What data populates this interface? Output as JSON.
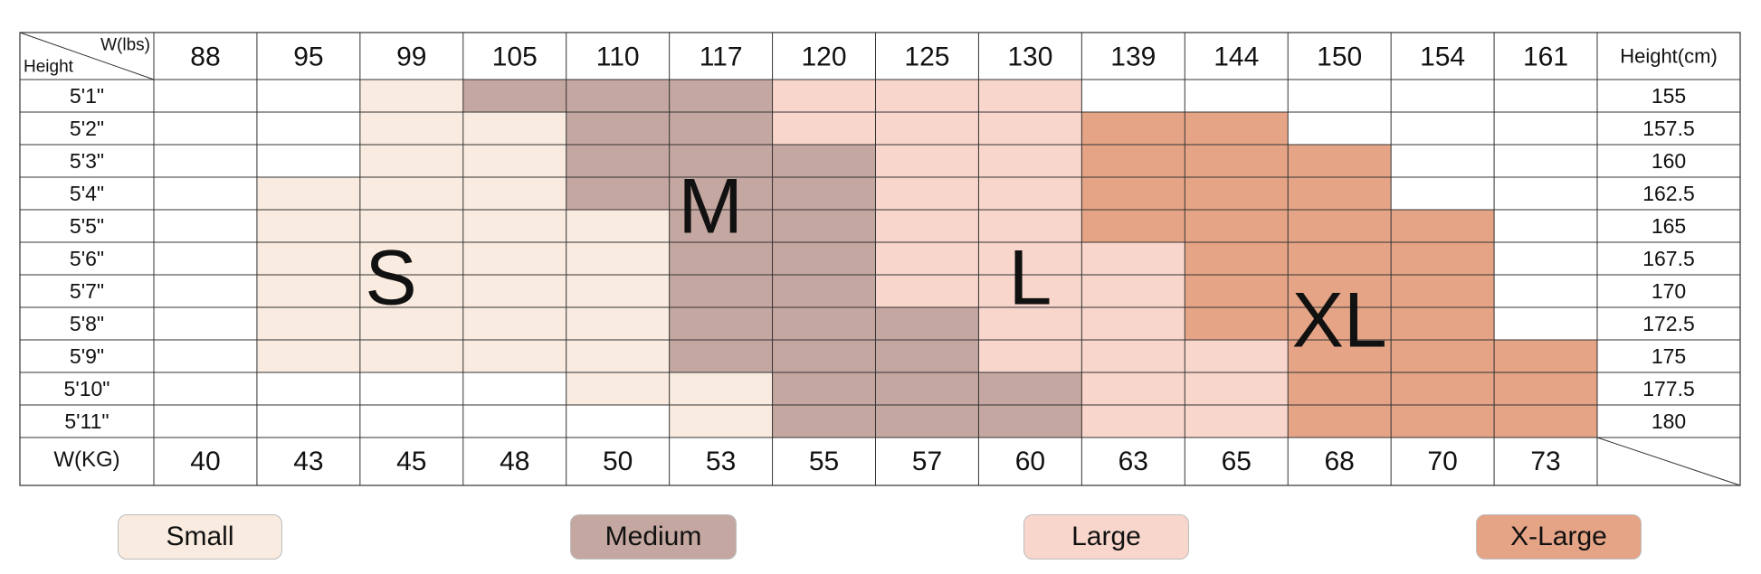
{
  "chart_data": {
    "type": "table",
    "title": "",
    "corner_labels": {
      "top": "W(lbs)",
      "bottom": "Height"
    },
    "right_header": "Height(cm)",
    "kg_label": "W(KG)",
    "weights_lbs": [
      "88",
      "95",
      "99",
      "105",
      "110",
      "117",
      "120",
      "125",
      "130",
      "139",
      "144",
      "150",
      "154",
      "161"
    ],
    "weights_kg": [
      "40",
      "43",
      "45",
      "48",
      "50",
      "53",
      "55",
      "57",
      "60",
      "63",
      "65",
      "68",
      "70",
      "73"
    ],
    "heights_ft": [
      "5'1\"",
      "5'2\"",
      "5'3\"",
      "5'4\"",
      "5'5\"",
      "5'6\"",
      "5'7\"",
      "5'8\"",
      "5'9\"",
      "5'10\"",
      "5'11\""
    ],
    "heights_cm": [
      "155",
      "157.5",
      "160",
      "162.5",
      "165",
      "167.5",
      "170",
      "172.5",
      "175",
      "177.5",
      "180"
    ],
    "size_grid": [
      [
        "",
        "",
        "S",
        "M",
        "M",
        "M",
        "L",
        "L",
        "L",
        "",
        "",
        "",
        "",
        ""
      ],
      [
        "",
        "",
        "S",
        "S",
        "M",
        "M",
        "L",
        "L",
        "L",
        "XL",
        "XL",
        "",
        "",
        ""
      ],
      [
        "",
        "",
        "S",
        "S",
        "M",
        "M",
        "M",
        "L",
        "L",
        "XL",
        "XL",
        "XL",
        "",
        ""
      ],
      [
        "",
        "S",
        "S",
        "S",
        "M",
        "M",
        "M",
        "L",
        "L",
        "XL",
        "XL",
        "XL",
        "",
        ""
      ],
      [
        "",
        "S",
        "S",
        "S",
        "S",
        "M",
        "M",
        "L",
        "L",
        "XL",
        "XL",
        "XL",
        "XL",
        ""
      ],
      [
        "",
        "S",
        "S",
        "S",
        "S",
        "M",
        "M",
        "L",
        "L",
        "L",
        "XL",
        "XL",
        "XL",
        ""
      ],
      [
        "",
        "S",
        "S",
        "S",
        "S",
        "M",
        "M",
        "L",
        "L",
        "L",
        "XL",
        "XL",
        "XL",
        ""
      ],
      [
        "",
        "S",
        "S",
        "S",
        "S",
        "M",
        "M",
        "M",
        "L",
        "L",
        "XL",
        "XL",
        "XL",
        ""
      ],
      [
        "",
        "S",
        "S",
        "S",
        "S",
        "M",
        "M",
        "M",
        "L",
        "L",
        "L",
        "XL",
        "XL",
        "XL"
      ],
      [
        "",
        "",
        "",
        "",
        "S",
        "S",
        "M",
        "M",
        "M",
        "L",
        "L",
        "XL",
        "XL",
        "XL"
      ],
      [
        "",
        "",
        "",
        "",
        "",
        "S",
        "M",
        "M",
        "M",
        "L",
        "L",
        "XL",
        "XL",
        "XL"
      ]
    ],
    "zone_letters": {
      "S": "S",
      "M": "M",
      "L": "L",
      "XL": "XL"
    },
    "colors": {
      "S": "#f9ebdf",
      "M": "#c4a7a0",
      "L": "#f8d6cc",
      "XL": "#e6a486",
      "grid": "#333333"
    },
    "legend": [
      {
        "key": "S",
        "label": "Small"
      },
      {
        "key": "M",
        "label": "Medium"
      },
      {
        "key": "L",
        "label": "Large"
      },
      {
        "key": "XL",
        "label": "X-Large"
      }
    ]
  }
}
